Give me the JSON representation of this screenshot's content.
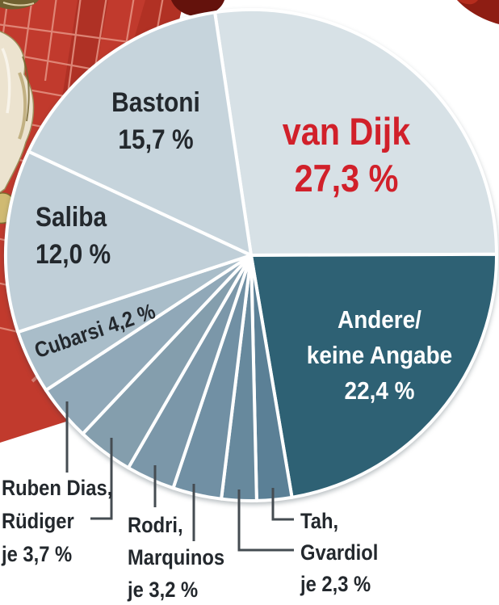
{
  "chart_data": {
    "type": "pie",
    "unit": "%",
    "direction": "clockwise",
    "start_angle_deg": -8.5,
    "slices": [
      {
        "id": "van-dijk",
        "label": "van Dijk",
        "value": 27.3,
        "display_value": "27,3 %",
        "color": "#d7e1e6",
        "label_color": "#d1202a"
      },
      {
        "id": "andere",
        "label": "Andere/keine Angabe",
        "value": 22.4,
        "display_value": "22,4 %",
        "color": "#2e6174",
        "label_color": "#ffffff"
      },
      {
        "id": "tah",
        "label": "Tah",
        "value": 2.3,
        "display_value": "2,3 %",
        "color": "#5b8096",
        "label_color": "#23282d"
      },
      {
        "id": "gvardiol",
        "label": "Gvardiol",
        "value": 2.3,
        "display_value": "2,3 %",
        "color": "#67899d",
        "label_color": "#23282d"
      },
      {
        "id": "marquinos",
        "label": "Marquinos",
        "value": 3.2,
        "display_value": "3,2 %",
        "color": "#7190a4",
        "label_color": "#23282d"
      },
      {
        "id": "rodri",
        "label": "Rodri",
        "value": 3.2,
        "display_value": "3,2 %",
        "color": "#7b97a9",
        "label_color": "#23282d"
      },
      {
        "id": "ruediger",
        "label": "Rüdiger",
        "value": 3.7,
        "display_value": "3,7 %",
        "color": "#849ead",
        "label_color": "#23282d"
      },
      {
        "id": "ruben-dias",
        "label": "Ruben Dias",
        "value": 3.7,
        "display_value": "3,7 %",
        "color": "#90a8b8",
        "label_color": "#23282d"
      },
      {
        "id": "cubarsi",
        "label": "Cubarsi",
        "value": 4.2,
        "display_value": "4,2 %",
        "color": "#a9bdc9",
        "label_color": "#23282d"
      },
      {
        "id": "saliba",
        "label": "Saliba",
        "value": 12.0,
        "display_value": "12,0 %",
        "color": "#c0cfd8",
        "label_color": "#23282d"
      },
      {
        "id": "bastoni",
        "label": "Bastoni",
        "value": 15.7,
        "display_value": "15,7 %",
        "color": "#c6d4dc",
        "label_color": "#23282d"
      }
    ]
  },
  "labels": {
    "van_dijk": {
      "name": "van Dijk",
      "value": "27,3 %"
    },
    "andere": {
      "line1": "Andere/",
      "line2": "keine Angabe",
      "value": "22,4 %"
    },
    "bastoni": {
      "name": "Bastoni",
      "value": "15,7 %"
    },
    "saliba": {
      "name": "Saliba",
      "value": "12,0 %"
    },
    "cubarsi": {
      "text": "Cubarsi 4,2 %"
    },
    "ruben_dias_ruediger": {
      "line1": "Ruben Dias,",
      "line2": "Rüdiger",
      "line3": "je 3,7 %"
    },
    "rodri_marquinos": {
      "line1": "Rodri,",
      "line2": "Marquinos",
      "line3": "je 3,2 %"
    },
    "tah_gvardiol": {
      "line1": "Tah,",
      "line2": "Gvardiol",
      "line3": "je 2,3 %"
    }
  },
  "colors": {
    "accent_red": "#d1202a",
    "dark_text": "#23282d",
    "white_text": "#ffffff",
    "teal_slice": "#2e6174",
    "callout_line": "#454c52",
    "photo_red": "#c13a2d"
  }
}
